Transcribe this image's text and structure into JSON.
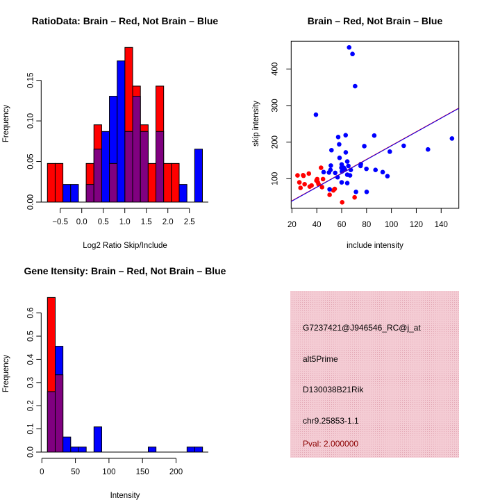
{
  "colors": {
    "red": "#ff0000",
    "blue": "#0000ff",
    "purple": "#800080",
    "panel": "#f2c6cf",
    "pval": "#8b0000"
  },
  "chart_data": [
    {
      "type": "bar",
      "title": "RatioData: Brain – Red, Not Brain – Blue",
      "xlabel": "Log2 Ratio Skip/Include",
      "ylabel": "Frequency",
      "bin_start": -0.797,
      "bin_width": 0.18,
      "xticks": [
        -0.5,
        0.0,
        0.5,
        1.0,
        1.5,
        2.0,
        2.5
      ],
      "xtick_labels": [
        "−0.5",
        "0.0",
        "0.5",
        "1.0",
        "1.5",
        "2.0",
        "2.5"
      ],
      "yticks": [
        0,
        0.05,
        0.1,
        0.15
      ],
      "ytick_labels": [
        "0.00",
        "0.05",
        "0.10",
        "0.15"
      ],
      "ylim": [
        0,
        0.19
      ],
      "series": [
        {
          "name": "Brain",
          "color": "red",
          "values": [
            0.0476,
            0.0476,
            0,
            0,
            0,
            0.0476,
            0.0952,
            0,
            0.0476,
            0,
            0.1905,
            0.1429,
            0.0952,
            0.0476,
            0.1429,
            0.0476,
            0.0476,
            0,
            0,
            0
          ]
        },
        {
          "name": "Not Brain",
          "color": "blue",
          "values": [
            0,
            0,
            0.0217,
            0.0217,
            0,
            0.0217,
            0.0652,
            0.087,
            0.1304,
            0.1739,
            0.087,
            0.1304,
            0.087,
            0,
            0.087,
            0,
            0,
            0.0217,
            0,
            0.0652
          ]
        }
      ]
    },
    {
      "type": "scatter",
      "title": "Brain – Red, Not Brain – Blue",
      "xlabel": "include intensity",
      "ylabel": "skip intensity",
      "xlim": [
        19.4,
        154.2
      ],
      "ylim": [
        19,
        476
      ],
      "xticks": [
        20,
        40,
        60,
        80,
        100,
        120,
        140
      ],
      "yticks": [
        100,
        200,
        300,
        400
      ],
      "regression": {
        "slope": 1.89,
        "intercept": 1.8
      },
      "series": [
        {
          "name": "Brain",
          "color": "red",
          "points": [
            [
              24.5,
              109
            ],
            [
              26,
              90
            ],
            [
              26.9,
              75
            ],
            [
              29,
              109.5
            ],
            [
              29.3,
              108
            ],
            [
              30.2,
              85
            ],
            [
              33.6,
              114
            ],
            [
              34.3,
              78.5
            ],
            [
              35.8,
              81.6
            ],
            [
              39.7,
              95
            ],
            [
              40.3,
              99
            ],
            [
              40.8,
              90.5
            ],
            [
              41.4,
              85
            ],
            [
              43.4,
              130
            ],
            [
              44.2,
              77
            ],
            [
              45,
              99
            ],
            [
              50.3,
              56
            ],
            [
              53.3,
              68
            ],
            [
              54.4,
              72
            ],
            [
              60.4,
              35.5
            ],
            [
              70.4,
              49
            ]
          ]
        },
        {
          "name": "Not Brain",
          "color": "blue",
          "points": [
            [
              66,
              459
            ],
            [
              68.7,
              441
            ],
            [
              70.8,
              353
            ],
            [
              39.3,
              275
            ],
            [
              57.2,
              214
            ],
            [
              63.2,
              219
            ],
            [
              86.2,
              218
            ],
            [
              148.7,
              210
            ],
            [
              58,
              194
            ],
            [
              78.2,
              189
            ],
            [
              109.9,
              190
            ],
            [
              129.4,
              180
            ],
            [
              51.8,
              178
            ],
            [
              63.3,
              172
            ],
            [
              98.7,
              174
            ],
            [
              58.3,
              157
            ],
            [
              64.5,
              147
            ],
            [
              51.3,
              136
            ],
            [
              60,
              139
            ],
            [
              75.4,
              140
            ],
            [
              75.2,
              135
            ],
            [
              65.4,
              135
            ],
            [
              59.8,
              130
            ],
            [
              61.7,
              130
            ],
            [
              62.6,
              125
            ],
            [
              60.2,
              120
            ],
            [
              51,
              124
            ],
            [
              49.8,
              117
            ],
            [
              54.8,
              116
            ],
            [
              45.5,
              118
            ],
            [
              67.3,
              124
            ],
            [
              79.9,
              127
            ],
            [
              87.2,
              124
            ],
            [
              93,
              118
            ],
            [
              96.8,
              107
            ],
            [
              56.7,
              104
            ],
            [
              64.5,
              111
            ],
            [
              66.7,
              109
            ],
            [
              60,
              90
            ],
            [
              64.5,
              88
            ],
            [
              50.3,
              71
            ],
            [
              71.5,
              64
            ],
            [
              80.1,
              64
            ]
          ]
        }
      ]
    },
    {
      "type": "bar",
      "title": "Gene Itensity: Brain – Red, Not Brain – Blue",
      "xlabel": "Intensity",
      "ylabel": "Frequency",
      "bin_start": 8.3,
      "bin_width": 11.56,
      "xticks": [
        0,
        50,
        100,
        150,
        200
      ],
      "xtick_labels": [
        "0",
        "50",
        "100",
        "150",
        "200"
      ],
      "yticks": [
        0,
        0.1,
        0.2,
        0.3,
        0.4,
        0.5,
        0.6
      ],
      "ytick_labels": [
        "0.0",
        "0.1",
        "0.2",
        "0.3",
        "0.4",
        "0.5",
        "0.6"
      ],
      "ylim": [
        0,
        0.67
      ],
      "series": [
        {
          "name": "Brain",
          "color": "red",
          "values": [
            0.6667,
            0.3333,
            0,
            0,
            0,
            0,
            0,
            0,
            0,
            0,
            0,
            0,
            0,
            0,
            0,
            0,
            0,
            0,
            0,
            0
          ]
        },
        {
          "name": "Not Brain",
          "color": "blue",
          "values": [
            0.2609,
            0.4565,
            0.0652,
            0.0217,
            0.0217,
            0,
            0.1087,
            0,
            0,
            0,
            0,
            0,
            0,
            0.0217,
            0,
            0,
            0,
            0,
            0.0217,
            0.0217
          ]
        }
      ]
    }
  ],
  "info_panel": {
    "probe_id": "G7237421@J946546_RC@j_at",
    "event_type": "alt5Prime",
    "gene": "D130038B21Rik",
    "location": "chr9.25853-1.1",
    "pval": "Pval: 2.000000"
  }
}
